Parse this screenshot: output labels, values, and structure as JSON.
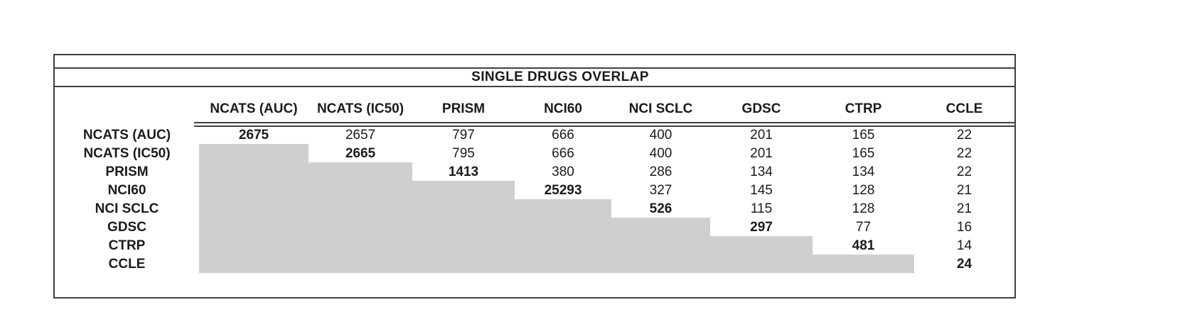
{
  "chart_data": {
    "type": "table",
    "title": "SINGLE DRUGS OVERLAP",
    "columns": [
      "NCATS (AUC)",
      "NCATS (IC50)",
      "PRISM",
      "NCI60",
      "NCI SCLC",
      "GDSC",
      "CTRP",
      "CCLE"
    ],
    "row_labels": [
      "NCATS (AUC)",
      "NCATS (IC50)",
      "PRISM",
      "NCI60",
      "NCI SCLC",
      "GDSC",
      "CTRP",
      "CCLE"
    ],
    "matrix": [
      [
        2675,
        2657,
        797,
        666,
        400,
        201,
        165,
        22
      ],
      [
        null,
        2665,
        795,
        666,
        400,
        201,
        165,
        22
      ],
      [
        null,
        null,
        1413,
        380,
        286,
        134,
        134,
        22
      ],
      [
        null,
        null,
        null,
        25293,
        327,
        145,
        128,
        21
      ],
      [
        null,
        null,
        null,
        null,
        526,
        115,
        128,
        21
      ],
      [
        null,
        null,
        null,
        null,
        null,
        297,
        77,
        16
      ],
      [
        null,
        null,
        null,
        null,
        null,
        null,
        481,
        14
      ],
      [
        null,
        null,
        null,
        null,
        null,
        null,
        null,
        24
      ]
    ],
    "diagonal_style": "bold",
    "lower_triangle_fill": "#d0cfcf",
    "border_color": "#3f3f3f",
    "layout": "upper-triangular overlap matrix; header row bold with double underline; lower triangle shaded gray staircase; no internal vertical gridlines"
  }
}
